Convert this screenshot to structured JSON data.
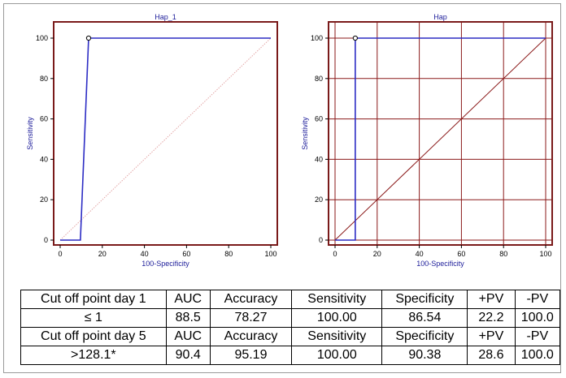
{
  "colors": {
    "frame": "#7a1a1a",
    "roc_curve": "#2c2cc4",
    "diagonal": "#e3a6a6",
    "grid": "#8b1a1a",
    "axis_text": "#1d1d9a"
  },
  "chart_data": [
    {
      "type": "line",
      "title": "Hap_1",
      "xlabel": "100-Specificity",
      "ylabel": "Sensitivity",
      "xlim": [
        0,
        100
      ],
      "ylim": [
        0,
        100
      ],
      "xticks": [
        0,
        20,
        40,
        60,
        80,
        100
      ],
      "yticks": [
        0,
        20,
        40,
        60,
        80,
        100
      ],
      "grid": false,
      "series": [
        {
          "x": [
            0,
            9.6,
            13.5,
            100
          ],
          "y": [
            0,
            0,
            100,
            100
          ]
        }
      ],
      "reference_line": {
        "x": [
          0,
          100
        ],
        "y": [
          0,
          100
        ],
        "style": "dotted"
      },
      "marker": {
        "x": 13.5,
        "y": 100
      }
    },
    {
      "type": "line",
      "title": "Hap",
      "xlabel": "100-Specificity",
      "ylabel": "Sensitivity",
      "xlim": [
        0,
        100
      ],
      "ylim": [
        0,
        100
      ],
      "xticks": [
        0,
        20,
        40,
        60,
        80,
        100
      ],
      "yticks": [
        0,
        20,
        40,
        60,
        80,
        100
      ],
      "grid": true,
      "series": [
        {
          "x": [
            0,
            9.6,
            9.6,
            100
          ],
          "y": [
            0,
            0,
            100,
            100
          ]
        }
      ],
      "reference_line": {
        "x": [
          0,
          100
        ],
        "y": [
          0,
          100
        ],
        "style": "solid"
      },
      "marker": {
        "x": 9.6,
        "y": 100
      }
    }
  ],
  "table": {
    "rows": [
      [
        "Cut off point day 1",
        "AUC",
        "Accuracy",
        "Sensitivity",
        "Specificity",
        "+PV",
        "-PV"
      ],
      [
        "≤ 1",
        "88.5",
        "78.27",
        "100.00",
        "86.54",
        "22.2",
        "100.0"
      ],
      [
        "Cut off point day 5",
        "AUC",
        "Accuracy",
        "Sensitivity",
        "Specificity",
        "+PV",
        "-PV"
      ],
      [
        ">128.1*",
        "90.4",
        "95.19",
        "100.00",
        "90.38",
        "28.6",
        "100.0"
      ]
    ]
  }
}
